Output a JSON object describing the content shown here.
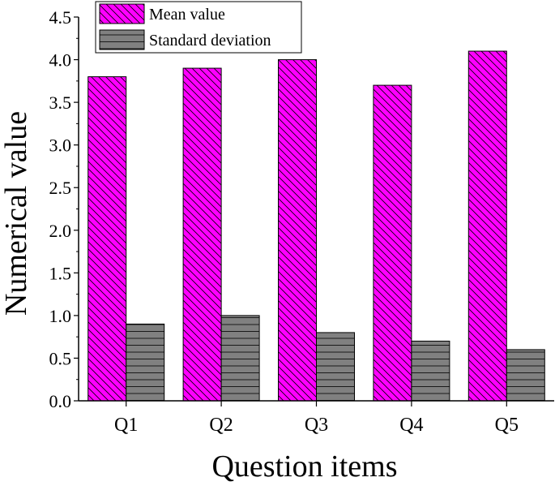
{
  "chart_data": {
    "type": "bar",
    "title": "",
    "xlabel": "Question items",
    "ylabel": "Numerical value",
    "categories": [
      "Q1",
      "Q2",
      "Q3",
      "Q4",
      "Q5"
    ],
    "series": [
      {
        "name": "Mean value",
        "values": [
          3.8,
          3.9,
          4.0,
          3.7,
          4.1
        ],
        "color": "#ff00ff",
        "pattern": "diagonal-hatch"
      },
      {
        "name": "Standard deviation",
        "values": [
          0.9,
          1.0,
          0.8,
          0.7,
          0.6
        ],
        "color": "#808080",
        "pattern": "horizontal-hatch"
      }
    ],
    "ylim": [
      0,
      4.5
    ],
    "yticks": [
      "0.0",
      "0.5",
      "1.0",
      "1.5",
      "2.0",
      "2.5",
      "3.0",
      "3.5",
      "4.0",
      "4.5"
    ],
    "grid": false,
    "legend_position": "top-left"
  }
}
